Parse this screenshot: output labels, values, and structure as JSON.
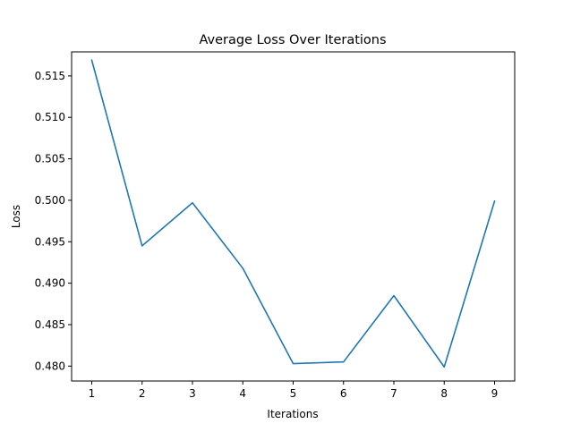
{
  "chart_data": {
    "type": "line",
    "title": "Average Loss Over Iterations",
    "xlabel": "Iterations",
    "ylabel": "Loss",
    "x": [
      1,
      2,
      3,
      4,
      5,
      6,
      7,
      8,
      9
    ],
    "xlim": [
      0.6,
      9.4
    ],
    "ylim": [
      0.4782,
      0.5179
    ],
    "xticks": [
      "1",
      "2",
      "3",
      "4",
      "5",
      "6",
      "7",
      "8",
      "9"
    ],
    "yticks": [
      "0.480",
      "0.485",
      "0.490",
      "0.495",
      "0.500",
      "0.505",
      "0.510",
      "0.515"
    ],
    "grid": false,
    "series": [
      {
        "color": "#1f77b4",
        "values": [
          0.5169,
          0.4945,
          0.4997,
          0.4918,
          0.4803,
          0.4805,
          0.4885,
          0.4799,
          0.4999
        ]
      }
    ]
  }
}
